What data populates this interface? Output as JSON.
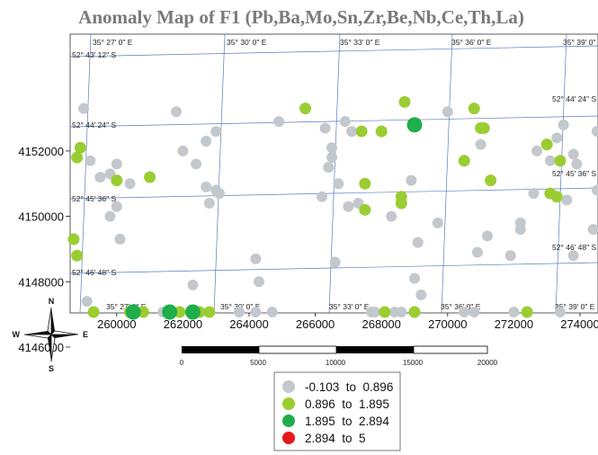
{
  "title": "Anomaly Map of F1 (Pb,Ba,Mo,Sn,Zr,Be,Nb,Ce,Th,La)",
  "colors": {
    "class1": "#c3c8cd",
    "class2": "#9acd32",
    "class3": "#1fae4b",
    "class4": "#e3191c",
    "grid": "#5b7db8"
  },
  "top_lon_labels": [
    "35° 27' 0\" E",
    "35° 30' 0\" E",
    "35° 33' 0\" E",
    "35° 36' 0\" E",
    "35° 39' 0\" E"
  ],
  "bottom_lon_labels": [
    "35° 27' 0\" E",
    "35° 30' 0\" E",
    "35° 33' 0\" E",
    "35° 36' 0\" E",
    "35° 39' 0\" E"
  ],
  "left_lat_labels": [
    "52° 43' 12\" S",
    "52° 44' 24\" S",
    "52° 45' 36\" S",
    "52° 46' 48\" S"
  ],
  "right_lat_labels": [
    "52° 44' 24\" S",
    "52° 45' 36\" S",
    "52° 46' 48\" S"
  ],
  "compass": {
    "n": "N",
    "s": "S",
    "e": "E",
    "w": "W"
  },
  "scale_bar": {
    "labels": [
      "0",
      "5000",
      "10000",
      "15000",
      "20000"
    ]
  },
  "chart_data": {
    "type": "scatter",
    "title": "Anomaly Map of F1 (Pb,Ba,Mo,Sn,Zr,Be,Nb,Ce,Th,La)",
    "xlabel": "",
    "ylabel": "",
    "xlim": [
      258700,
      275000
    ],
    "ylim": [
      4145000,
      4153600
    ],
    "x_ticks": [
      260000,
      262000,
      264000,
      266000,
      268000,
      270000,
      272000,
      274000
    ],
    "y_ticks": [
      4146000,
      4148000,
      4150000,
      4152000
    ],
    "x_tick_labels": [
      "260000",
      "262000",
      "264000",
      "266000",
      "268000",
      "270000",
      "272000",
      "274000"
    ],
    "y_tick_labels": [
      "4146000",
      "4148000",
      "4150000",
      "4152000"
    ],
    "grid": true,
    "legend_position": "bottom-center",
    "series": [
      {
        "name": "-0.103  to  0.896",
        "points": [
          [
            259000,
            4153300
          ],
          [
            259200,
            4151700
          ],
          [
            259500,
            4151200
          ],
          [
            259800,
            4151300
          ],
          [
            260000,
            4151600
          ],
          [
            260400,
            4151000
          ],
          [
            260000,
            4150300
          ],
          [
            259800,
            4150000
          ],
          [
            260100,
            4149300
          ],
          [
            259100,
            4147400
          ],
          [
            260400,
            4146200
          ],
          [
            261800,
            4153200
          ],
          [
            262000,
            4152000
          ],
          [
            262400,
            4151600
          ],
          [
            262700,
            4152300
          ],
          [
            263000,
            4152600
          ],
          [
            262700,
            4150900
          ],
          [
            263000,
            4150800
          ],
          [
            262800,
            4150400
          ],
          [
            263100,
            4150700
          ],
          [
            264200,
            4148700
          ],
          [
            264300,
            4148000
          ],
          [
            262300,
            4147900
          ],
          [
            263700,
            4146200
          ],
          [
            264200,
            4146800
          ],
          [
            264700,
            4146000
          ],
          [
            261400,
            4145200
          ],
          [
            264900,
            4152900
          ],
          [
            266300,
            4152700
          ],
          [
            266500,
            4152100
          ],
          [
            266500,
            4151800
          ],
          [
            266400,
            4151500
          ],
          [
            266900,
            4152900
          ],
          [
            267100,
            4152600
          ],
          [
            266700,
            4151000
          ],
          [
            266200,
            4150600
          ],
          [
            267300,
            4150400
          ],
          [
            267000,
            4150300
          ],
          [
            266600,
            4148600
          ],
          [
            267800,
            4146800
          ],
          [
            267700,
            4146200
          ],
          [
            268400,
            4146400
          ],
          [
            268600,
            4145400
          ],
          [
            268900,
            4151100
          ],
          [
            268300,
            4150000
          ],
          [
            269100,
            4149200
          ],
          [
            269700,
            4149800
          ],
          [
            269000,
            4148100
          ],
          [
            269200,
            4147600
          ],
          [
            270900,
            4148900
          ],
          [
            270500,
            4145200
          ],
          [
            270800,
            4145800
          ],
          [
            271200,
            4149400
          ],
          [
            271000,
            4152200
          ],
          [
            270000,
            4153200
          ],
          [
            272200,
            4149600
          ],
          [
            272600,
            4150700
          ],
          [
            272200,
            4149800
          ],
          [
            271900,
            4148800
          ],
          [
            272700,
            4152000
          ],
          [
            273100,
            4151700
          ],
          [
            273300,
            4152400
          ],
          [
            273500,
            4152800
          ],
          [
            273800,
            4151900
          ],
          [
            273900,
            4151600
          ],
          [
            273600,
            4150500
          ],
          [
            273800,
            4148800
          ],
          [
            274400,
            4149600
          ],
          [
            274800,
            4150800
          ],
          [
            274800,
            4152600
          ],
          [
            272000,
            4146100
          ],
          [
            273400,
            4145200
          ]
        ]
      },
      {
        "name": "0.896  to  1.895",
        "points": [
          [
            258900,
            4152100
          ],
          [
            258800,
            4151800
          ],
          [
            260000,
            4151100
          ],
          [
            261000,
            4151200
          ],
          [
            258700,
            4149300
          ],
          [
            258800,
            4148800
          ],
          [
            260400,
            4147000
          ],
          [
            260400,
            4146600
          ],
          [
            260800,
            4146500
          ],
          [
            260500,
            4146300
          ],
          [
            259300,
            4145400
          ],
          [
            261900,
            4146000
          ],
          [
            262500,
            4146100
          ],
          [
            262800,
            4146000
          ],
          [
            265700,
            4153300
          ],
          [
            267400,
            4152600
          ],
          [
            268000,
            4152600
          ],
          [
            267500,
            4151000
          ],
          [
            267500,
            4150200
          ],
          [
            268600,
            4150600
          ],
          [
            268600,
            4150400
          ],
          [
            268100,
            4146100
          ],
          [
            269000,
            4145800
          ],
          [
            268700,
            4153500
          ],
          [
            270500,
            4151700
          ],
          [
            271000,
            4152700
          ],
          [
            271100,
            4152700
          ],
          [
            271300,
            4151100
          ],
          [
            270800,
            4153300
          ],
          [
            272400,
            4145000
          ],
          [
            273000,
            4152200
          ],
          [
            273400,
            4151700
          ],
          [
            273100,
            4150700
          ],
          [
            273300,
            4150600
          ]
        ]
      },
      {
        "name": "1.895  to  2.894",
        "points": [
          [
            269000,
            4152800
          ],
          [
            260500,
            4146500
          ],
          [
            261600,
            4145300
          ],
          [
            262300,
            4146300
          ]
        ]
      },
      {
        "name": "2.894  to  5",
        "points": []
      }
    ]
  }
}
